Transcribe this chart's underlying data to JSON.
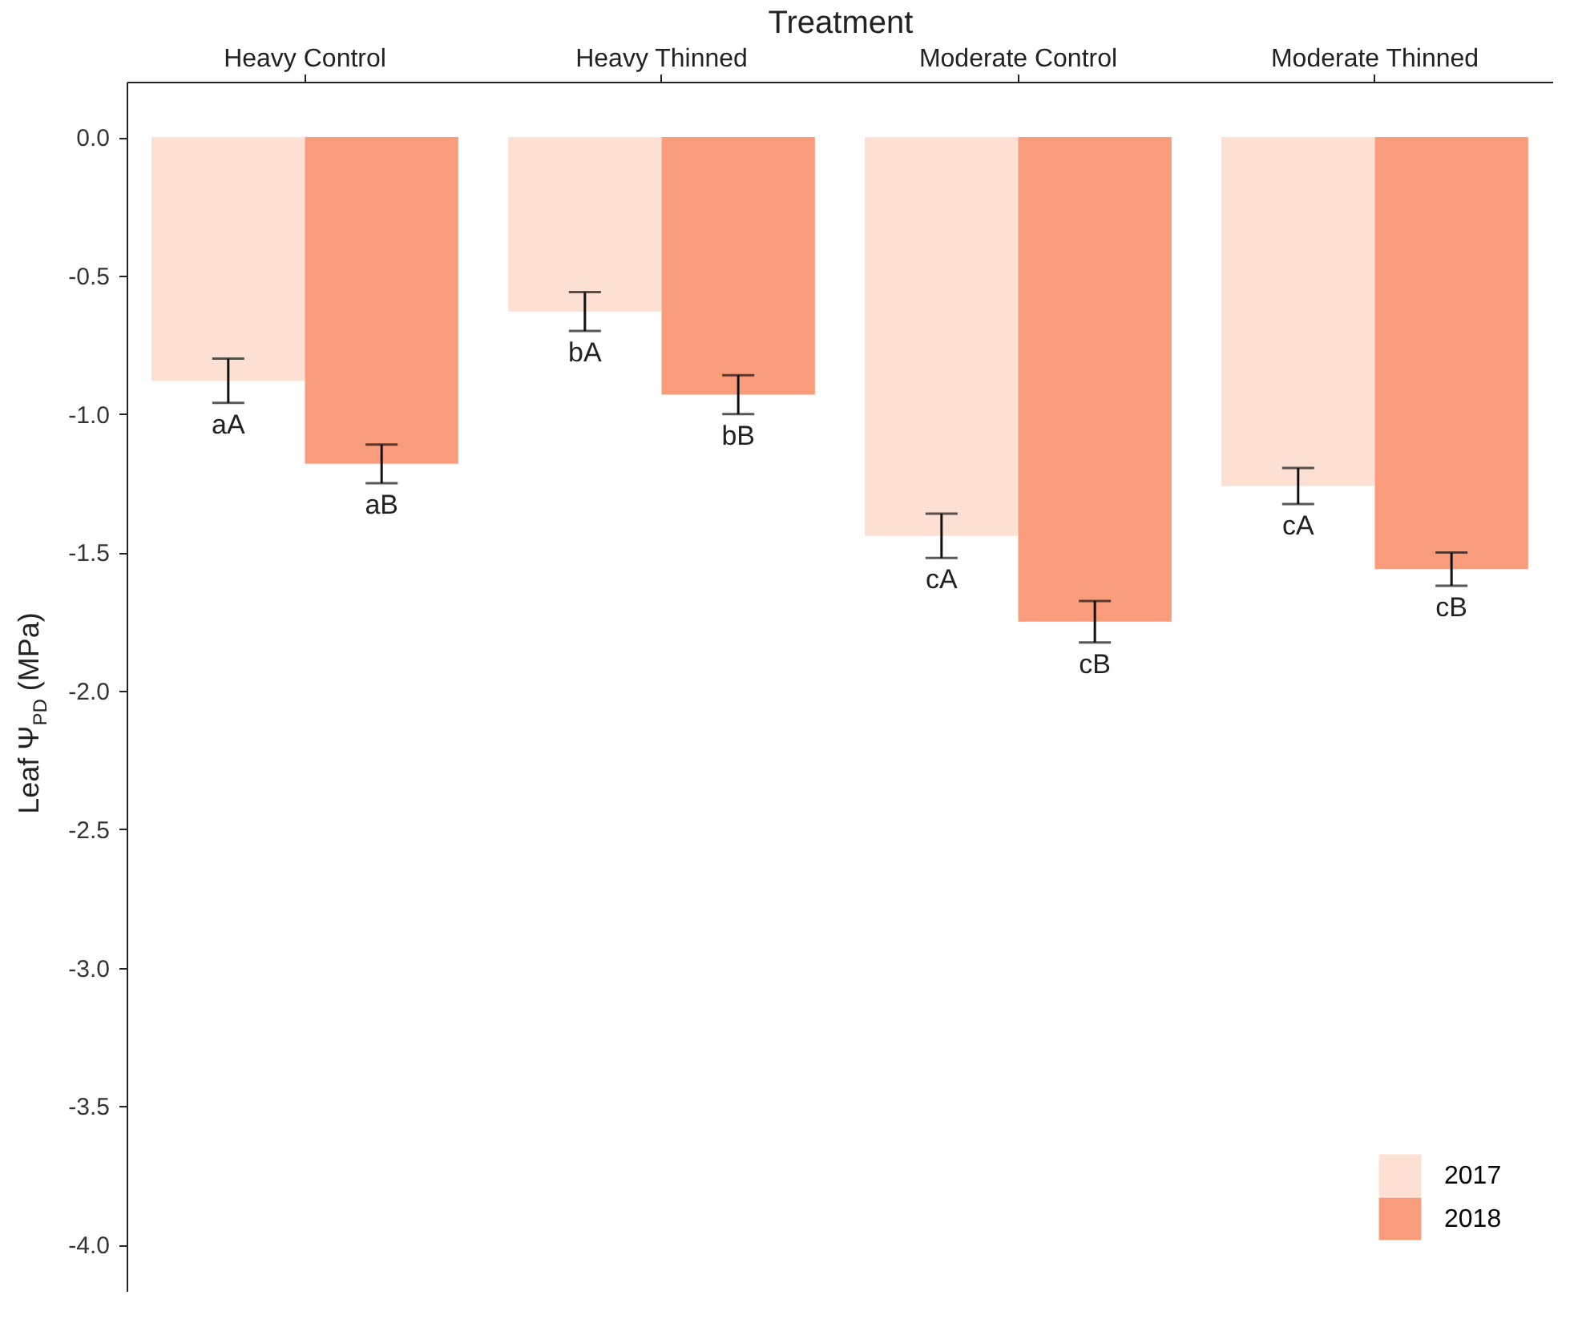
{
  "chart_data": {
    "type": "bar",
    "xlabel": "Treatment",
    "ylabel": "Leaf Ψ$_{PD}$ (MPa)",
    "categories": [
      "Heavy Control",
      "Heavy Thinned",
      "Moderate Control",
      "Moderate Thinned"
    ],
    "series": [
      {
        "name": "2017",
        "color": "#fce0d4",
        "values": [
          -0.88,
          -0.63,
          -1.44,
          -1.26
        ],
        "errors": [
          0.08,
          0.07,
          0.08,
          0.065
        ],
        "value_labels": [
          "aA",
          "bA",
          "cA",
          "cA"
        ]
      },
      {
        "name": "2018",
        "color": "#f99c7c",
        "values": [
          -1.18,
          -0.93,
          -1.75,
          -1.56
        ],
        "errors": [
          0.07,
          0.07,
          0.075,
          0.06
        ],
        "value_labels": [
          "aB",
          "bB",
          "cB",
          "cB"
        ]
      }
    ],
    "ylim": [
      -4.17,
      0.2
    ],
    "yticks": [
      {
        "value": 0,
        "label": "0.0"
      },
      {
        "value": -0.5,
        "label": "-0.5"
      },
      {
        "value": -1,
        "label": "-1.0"
      },
      {
        "value": -1.5,
        "label": "-1.5"
      },
      {
        "value": -2,
        "label": "-2.0"
      },
      {
        "value": -2.5,
        "label": "-2.5"
      },
      {
        "value": -3,
        "label": "-3.0"
      },
      {
        "value": -3.5,
        "label": "-3.5"
      },
      {
        "value": -4,
        "label": "-4.0"
      }
    ],
    "grid": false,
    "legend": "bottom right"
  }
}
